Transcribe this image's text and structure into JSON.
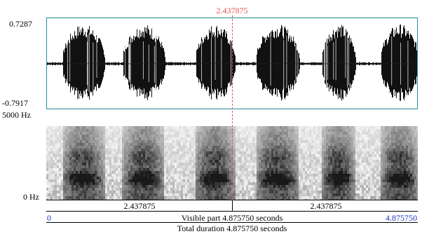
{
  "waveform": {
    "max_label": "0.7287",
    "min_label": "-0.7917"
  },
  "spectrogram": {
    "max_freq_label": "5000 Hz",
    "min_freq_label": "0 Hz"
  },
  "cursor": {
    "time_label": "2.437875"
  },
  "selection": {
    "left_duration": "2.437875",
    "right_duration": "2.437875"
  },
  "visible": {
    "start": "0",
    "end": "4.875750",
    "label": "Visible part 4.875750 seconds"
  },
  "total": {
    "label": "Total duration 4.875750 seconds"
  },
  "colors": {
    "cursor": "#e05555",
    "panel_border": "#1f8f99",
    "time_blue": "#1a36c9",
    "waveform": "#111111"
  }
}
